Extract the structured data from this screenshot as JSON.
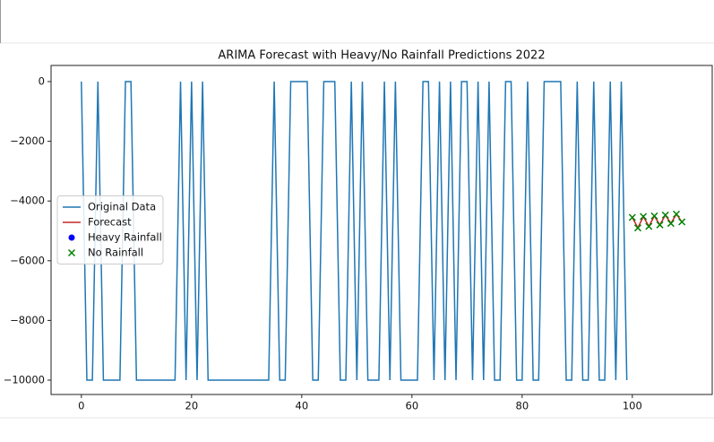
{
  "chart_data": {
    "type": "line",
    "title": "ARIMA Forecast with Heavy/No Rainfall Predictions 2022",
    "xlim": [
      -5.5,
      114.5
    ],
    "ylim": [
      540,
      -10480
    ],
    "xticks": [
      0,
      20,
      40,
      60,
      80,
      100
    ],
    "yticks": [
      0,
      {
        "value": -2000,
        "label": "−2000"
      },
      {
        "value": -4000,
        "label": "−4000"
      },
      {
        "value": -6000,
        "label": "−6000"
      },
      {
        "value": -8000,
        "label": "−8000"
      },
      {
        "value": -10000,
        "label": "−10000"
      }
    ],
    "legend": "center left",
    "series": [
      {
        "name": "Original Data",
        "color": "#1f77b4",
        "marker": "line",
        "x": [
          0,
          1,
          2,
          3,
          4,
          5,
          6,
          7,
          8,
          9,
          10,
          11,
          12,
          13,
          14,
          15,
          16,
          17,
          18,
          19,
          20,
          21,
          22,
          23,
          24,
          25,
          26,
          27,
          28,
          29,
          30,
          31,
          32,
          33,
          34,
          35,
          36,
          37,
          38,
          39,
          40,
          41,
          42,
          43,
          44,
          45,
          46,
          47,
          48,
          49,
          50,
          51,
          52,
          53,
          54,
          55,
          56,
          57,
          58,
          59,
          60,
          61,
          62,
          63,
          64,
          65,
          66,
          67,
          68,
          69,
          70,
          71,
          72,
          73,
          74,
          75,
          76,
          77,
          78,
          79,
          80,
          81,
          82,
          83,
          84,
          85,
          86,
          87,
          88,
          89,
          90,
          91,
          92,
          93,
          94,
          95,
          96,
          97,
          98,
          99
        ],
        "values": [
          0,
          -10000,
          -10000,
          0,
          -10000,
          -10000,
          -10000,
          -10000,
          0,
          0,
          -10000,
          -10000,
          -10000,
          -10000,
          -10000,
          -10000,
          -10000,
          -10000,
          0,
          -10000,
          0,
          -10000,
          0,
          -10000,
          -10000,
          -10000,
          -10000,
          -10000,
          -10000,
          -10000,
          -10000,
          -10000,
          -10000,
          -10000,
          -10000,
          0,
          -10000,
          -10000,
          0,
          0,
          0,
          0,
          -10000,
          -10000,
          0,
          0,
          0,
          -10000,
          -10000,
          0,
          -10000,
          0,
          -10000,
          -10000,
          -10000,
          0,
          -10000,
          0,
          -10000,
          -10000,
          -10000,
          -10000,
          0,
          0,
          -10000,
          0,
          -10000,
          0,
          -10000,
          0,
          0,
          -10000,
          0,
          -10000,
          0,
          -10000,
          -10000,
          0,
          0,
          -10000,
          -10000,
          0,
          -10000,
          -10000,
          0,
          0,
          0,
          0,
          -10000,
          -10000,
          0,
          -10000,
          -10000,
          0,
          -10000,
          -10000,
          0,
          -10000,
          0,
          -10000
        ]
      },
      {
        "name": "Forecast",
        "color": "#c62828",
        "marker": "line",
        "x": [
          100,
          101,
          102,
          103,
          104,
          105,
          106,
          107,
          108,
          109
        ],
        "values": [
          -4550,
          -4900,
          -4520,
          -4850,
          -4500,
          -4800,
          -4470,
          -4750,
          -4440,
          -4700
        ]
      },
      {
        "name": "Heavy Rainfall",
        "color": "#0000ff",
        "marker": "dot",
        "x": [],
        "values": []
      },
      {
        "name": "No Rainfall",
        "color": "#008000",
        "marker": "cross",
        "x": [
          100,
          101,
          102,
          103,
          104,
          105,
          106,
          107,
          108,
          109
        ],
        "values": [
          -4550,
          -4900,
          -4520,
          -4850,
          -4500,
          -4800,
          -4470,
          -4750,
          -4440,
          -4700
        ]
      }
    ]
  }
}
